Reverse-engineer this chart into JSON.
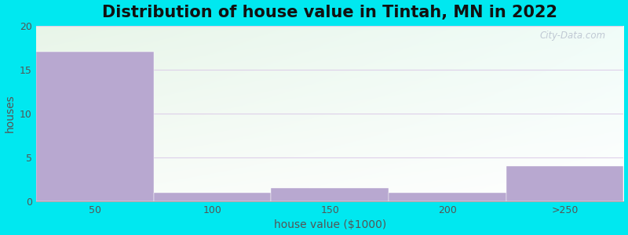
{
  "title": "Distribution of house value in Tintah, MN in 2022",
  "xlabel": "house value ($1000)",
  "ylabel": "houses",
  "categories": [
    "50",
    "100",
    "150",
    "200",
    ">250"
  ],
  "values": [
    17,
    1,
    1.5,
    1,
    4
  ],
  "bar_color": "#b8a8d0",
  "ylim": [
    0,
    20
  ],
  "yticks": [
    0,
    5,
    10,
    15,
    20
  ],
  "background_outer": "#00e8f0",
  "plot_bg_topleft": "#e8f5e8",
  "plot_bg_bottomright": "#f8fcf8",
  "gridcolor": "#dccce8",
  "title_fontsize": 15,
  "axis_label_fontsize": 10,
  "tick_fontsize": 9,
  "watermark": "City-Data.com"
}
